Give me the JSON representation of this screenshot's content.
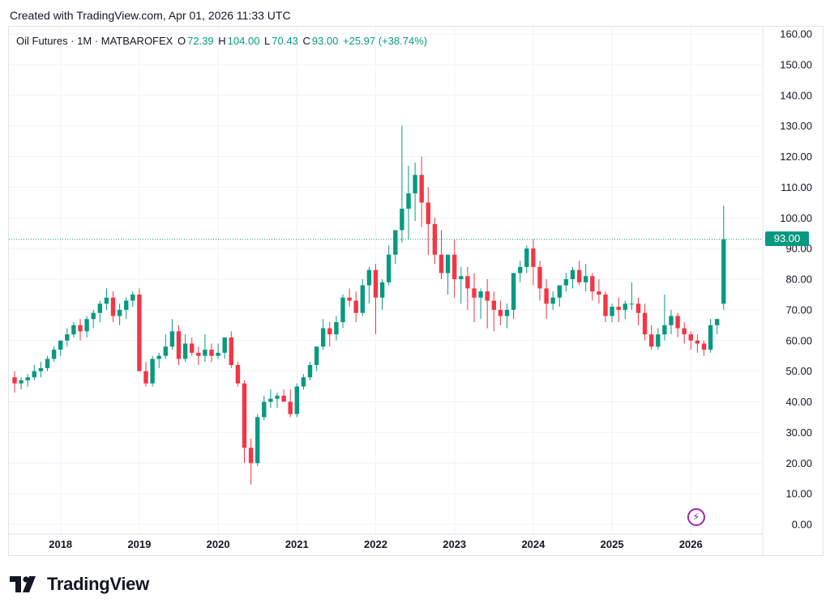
{
  "header": {
    "created_text": "Created with TradingView.com, Apr 01, 2026 11:33 UTC"
  },
  "legend": {
    "symbol": "Oil Futures · 1M · MATBAROFEX",
    "open_label": "O",
    "open_value": "72.39",
    "high_label": "H",
    "high_value": "104.00",
    "low_label": "L",
    "low_value": "70.43",
    "close_label": "C",
    "close_value": "93.00",
    "change": "+25.97 (+38.74%)"
  },
  "price_tag": "93.00",
  "brand": {
    "name": "TradingView",
    "icon": "tradingview-logo-icon"
  },
  "flash_icon": "lightning-icon",
  "colors": {
    "up": "#089981",
    "down": "#f23645",
    "grid": "#f0f3fa",
    "lastline": "#089981"
  },
  "chart_data": {
    "type": "candlestick",
    "title": "Oil Futures · 1M · MATBAROFEX",
    "ylim": [
      0,
      160
    ],
    "y_ticks": [
      "0.00",
      "10.00",
      "20.00",
      "30.00",
      "40.00",
      "50.00",
      "60.00",
      "70.00",
      "80.00",
      "90.00",
      "100.00",
      "110.00",
      "120.00",
      "130.00",
      "140.00",
      "150.00",
      "160.00"
    ],
    "x_ticks": [
      "2018",
      "2019",
      "2020",
      "2021",
      "2022",
      "2023",
      "2024",
      "2025",
      "2026"
    ],
    "x_start": "2017-06",
    "last_price": 93.0,
    "candles": [
      [
        48,
        50,
        43,
        46
      ],
      [
        46,
        48,
        44,
        47
      ],
      [
        47,
        49,
        45,
        48
      ],
      [
        48,
        52,
        47,
        50
      ],
      [
        50,
        53,
        48,
        51
      ],
      [
        51,
        55,
        50,
        54
      ],
      [
        54,
        58,
        53,
        57
      ],
      [
        57,
        60,
        55,
        60
      ],
      [
        60,
        64,
        58,
        62
      ],
      [
        62,
        66,
        61,
        65
      ],
      [
        65,
        67,
        60,
        63
      ],
      [
        63,
        68,
        61,
        67
      ],
      [
        67,
        70,
        64,
        69
      ],
      [
        69,
        73,
        66,
        72
      ],
      [
        72,
        77,
        70,
        74
      ],
      [
        74,
        76,
        66,
        68
      ],
      [
        68,
        72,
        65,
        70
      ],
      [
        70,
        74,
        67,
        73
      ],
      [
        73,
        76,
        71,
        75
      ],
      [
        75,
        77,
        50,
        50
      ],
      [
        50,
        53,
        45,
        46
      ],
      [
        46,
        55,
        45,
        54
      ],
      [
        54,
        56,
        51,
        55
      ],
      [
        55,
        62,
        54,
        58
      ],
      [
        58,
        67,
        57,
        63
      ],
      [
        63,
        65,
        52,
        54
      ],
      [
        54,
        62,
        53,
        59
      ],
      [
        59,
        61,
        55,
        56
      ],
      [
        56,
        58,
        52,
        55
      ],
      [
        55,
        62,
        53,
        57
      ],
      [
        57,
        59,
        53,
        55
      ],
      [
        55,
        59,
        54,
        56
      ],
      [
        56,
        61,
        54,
        61
      ],
      [
        61,
        63,
        51,
        52
      ],
      [
        52,
        53,
        45,
        46
      ],
      [
        46,
        47,
        20,
        25
      ],
      [
        25,
        28,
        13,
        20
      ],
      [
        20,
        36,
        19,
        35
      ],
      [
        35,
        42,
        34,
        40
      ],
      [
        40,
        44,
        38,
        41
      ],
      [
        41,
        43,
        38,
        42
      ],
      [
        42,
        44,
        40,
        40
      ],
      [
        40,
        44,
        35,
        36
      ],
      [
        36,
        46,
        35,
        45
      ],
      [
        45,
        49,
        44,
        48
      ],
      [
        48,
        53,
        47,
        52
      ],
      [
        52,
        58,
        50,
        58
      ],
      [
        58,
        67,
        57,
        64
      ],
      [
        64,
        66,
        58,
        62
      ],
      [
        62,
        68,
        60,
        66
      ],
      [
        66,
        75,
        64,
        74
      ],
      [
        74,
        77,
        71,
        73
      ],
      [
        73,
        76,
        66,
        69
      ],
      [
        69,
        80,
        68,
        78
      ],
      [
        78,
        84,
        72,
        83
      ],
      [
        83,
        85,
        62,
        74
      ],
      [
        74,
        80,
        70,
        79
      ],
      [
        79,
        91,
        78,
        88
      ],
      [
        88,
        95,
        85,
        96
      ],
      [
        96,
        130,
        92,
        103
      ],
      [
        103,
        117,
        93,
        108
      ],
      [
        108,
        118,
        99,
        114
      ],
      [
        114,
        120,
        97,
        105
      ],
      [
        105,
        110,
        88,
        98
      ],
      [
        98,
        100,
        85,
        88
      ],
      [
        88,
        96,
        80,
        82
      ],
      [
        82,
        87,
        75,
        88
      ],
      [
        88,
        93,
        74,
        80
      ],
      [
        80,
        84,
        72,
        81
      ],
      [
        81,
        84,
        70,
        77
      ],
      [
        77,
        82,
        66,
        74
      ],
      [
        74,
        77,
        67,
        76
      ],
      [
        76,
        80,
        64,
        73
      ],
      [
        73,
        76,
        63,
        70
      ],
      [
        70,
        73,
        65,
        68
      ],
      [
        68,
        72,
        64,
        70
      ],
      [
        70,
        82,
        67,
        82
      ],
      [
        82,
        86,
        79,
        84
      ],
      [
        84,
        91,
        82,
        90
      ],
      [
        90,
        93,
        78,
        84
      ],
      [
        84,
        86,
        73,
        77
      ],
      [
        77,
        80,
        67,
        72
      ],
      [
        72,
        76,
        70,
        74
      ],
      [
        74,
        78,
        71,
        78
      ],
      [
        78,
        82,
        76,
        80
      ],
      [
        80,
        84,
        77,
        83
      ],
      [
        83,
        86,
        78,
        79
      ],
      [
        79,
        85,
        76,
        81
      ],
      [
        81,
        82,
        73,
        76
      ],
      [
        76,
        80,
        72,
        75
      ],
      [
        75,
        76,
        66,
        68
      ],
      [
        68,
        72,
        66,
        71
      ],
      [
        71,
        74,
        66,
        70
      ],
      [
        70,
        73,
        67,
        72
      ],
      [
        72,
        79,
        70,
        72
      ],
      [
        72,
        74,
        65,
        69
      ],
      [
        69,
        72,
        60,
        62
      ],
      [
        62,
        65,
        57,
        58
      ],
      [
        58,
        64,
        57,
        62
      ],
      [
        62,
        75,
        60,
        65
      ],
      [
        65,
        70,
        62,
        68
      ],
      [
        68,
        69,
        61,
        64
      ],
      [
        64,
        66,
        59,
        62
      ],
      [
        62,
        63,
        57,
        60
      ],
      [
        60,
        62,
        56,
        59
      ],
      [
        59,
        60,
        55,
        57
      ],
      [
        57,
        67,
        56,
        65
      ],
      [
        65,
        67,
        62,
        67
      ],
      [
        72,
        104,
        70,
        93
      ]
    ]
  }
}
